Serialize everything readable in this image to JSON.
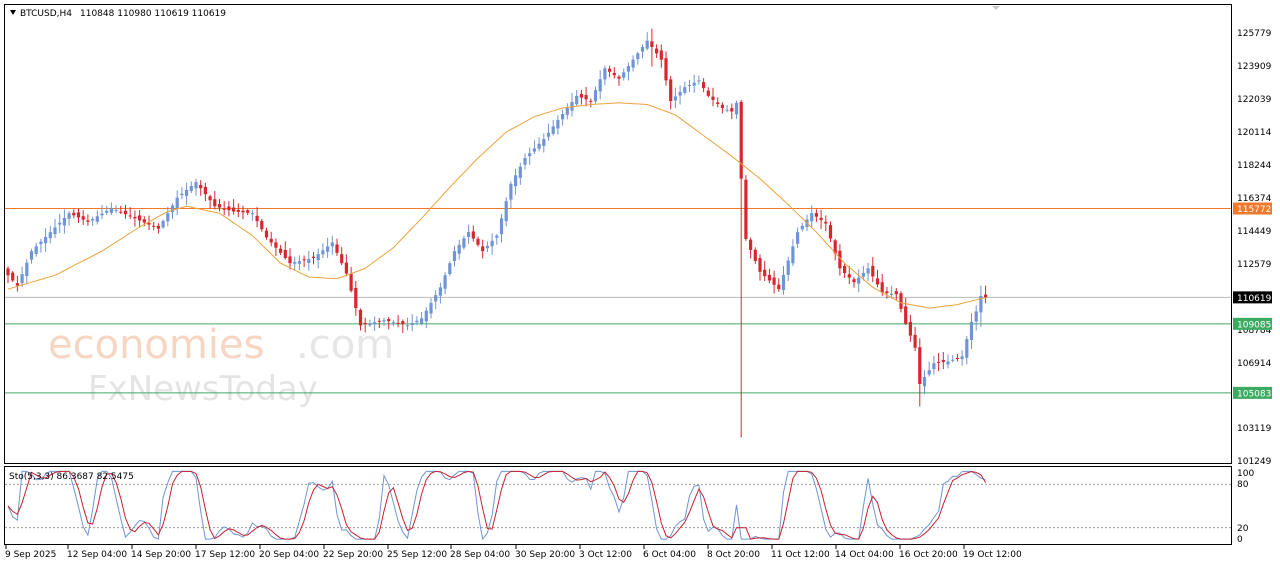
{
  "header": {
    "symbol": "BTCUSD,H4",
    "ohlc": "110848 110980 110619 110619"
  },
  "stoch_header": "Sto(5,3,3) 86.3687 82.5475",
  "watermark": {
    "line1_colored": "economies",
    "line1_suffix": ".com",
    "line2": "FxNewsToday"
  },
  "price_ticks": [
    "125779",
    "123909",
    "122039",
    "120114",
    "118244",
    "116374",
    "114449",
    "112579",
    "106914",
    "103119",
    "101249"
  ],
  "tick_under_label": "108784",
  "stoch_ticks": [
    "100",
    "80",
    "20",
    "0"
  ],
  "price_tags": [
    {
      "label": "115772",
      "value": 115772,
      "color": "#f0792b"
    },
    {
      "label": "110619",
      "value": 110619,
      "color": "#000000"
    },
    {
      "label": "109085",
      "value": 109085,
      "color": "#3daa62"
    },
    {
      "label": "105083",
      "value": 105083,
      "color": "#3daa62"
    }
  ],
  "time_ticks": [
    "9 Sep 2025",
    "12 Sep 04:00",
    "14 Sep 20:00",
    "17 Sep 12:00",
    "20 Sep 04:00",
    "22 Sep 20:00",
    "25 Sep 12:00",
    "28 Sep 04:00",
    "30 Sep 20:00",
    "3 Oct 12:00",
    "6 Oct 04:00",
    "8 Oct 20:00",
    "11 Oct 12:00",
    "14 Oct 04:00",
    "16 Oct 20:00",
    "19 Oct 12:00"
  ],
  "colors": {
    "bull": "#6f95d6",
    "bear": "#d8262e",
    "ma": "#e8a33d",
    "stoch_main": "#6f95d6",
    "stoch_signal": "#c62230",
    "grid_dots": "#9a9a9a"
  },
  "chart_data": {
    "type": "candlestick",
    "symbol": "BTCUSD",
    "timeframe": "H4",
    "ylim": [
      101249,
      126700
    ],
    "stoch_ylim": [
      0,
      100
    ],
    "stoch_levels": [
      80,
      20
    ],
    "x_categories": [
      "9 Sep 2025",
      "12 Sep 04:00",
      "14 Sep 20:00",
      "17 Sep 12:00",
      "20 Sep 04:00",
      "22 Sep 20:00",
      "25 Sep 12:00",
      "28 Sep 04:00",
      "30 Sep 20:00",
      "3 Oct 12:00",
      "6 Oct 04:00",
      "8 Oct 20:00",
      "11 Oct 12:00",
      "14 Oct 04:00",
      "16 Oct 20:00",
      "19 Oct 12:00"
    ],
    "price_anchors": [
      [
        0,
        111900
      ],
      [
        2,
        111300
      ],
      [
        5,
        113300
      ],
      [
        9,
        114400
      ],
      [
        13,
        115500
      ],
      [
        17,
        115000
      ],
      [
        22,
        115800
      ],
      [
        27,
        115200
      ],
      [
        32,
        114600
      ],
      [
        36,
        116400
      ],
      [
        40,
        117300
      ],
      [
        44,
        115900
      ],
      [
        48,
        115600
      ],
      [
        52,
        115500
      ],
      [
        55,
        114100
      ],
      [
        60,
        112600
      ],
      [
        65,
        112900
      ],
      [
        69,
        113800
      ],
      [
        72,
        112000
      ],
      [
        75,
        109000
      ],
      [
        80,
        109300
      ],
      [
        85,
        109000
      ],
      [
        88,
        109400
      ],
      [
        92,
        111200
      ],
      [
        95,
        113300
      ],
      [
        98,
        114400
      ],
      [
        101,
        113300
      ],
      [
        104,
        114200
      ],
      [
        107,
        117200
      ],
      [
        110,
        118700
      ],
      [
        114,
        119800
      ],
      [
        117,
        120900
      ],
      [
        121,
        122300
      ],
      [
        124,
        122000
      ],
      [
        127,
        123900
      ],
      [
        130,
        123300
      ],
      [
        133,
        124400
      ],
      [
        136,
        125500
      ],
      [
        139,
        124400
      ],
      [
        141,
        122000
      ],
      [
        144,
        122800
      ],
      [
        147,
        123200
      ],
      [
        149,
        122300
      ],
      [
        152,
        121600
      ],
      [
        154,
        121400
      ],
      [
        155,
        121900
      ],
      [
        156,
        117500
      ],
      [
        157,
        114000
      ],
      [
        160,
        112100
      ],
      [
        164,
        111100
      ],
      [
        168,
        114400
      ],
      [
        171,
        115500
      ],
      [
        174,
        114900
      ],
      [
        177,
        112300
      ],
      [
        180,
        111500
      ],
      [
        183,
        112300
      ],
      [
        186,
        110900
      ],
      [
        189,
        110800
      ],
      [
        191,
        109100
      ],
      [
        193,
        107700
      ],
      [
        194,
        105600
      ],
      [
        197,
        106800
      ],
      [
        200,
        106900
      ],
      [
        203,
        107200
      ],
      [
        205,
        109200
      ],
      [
        206,
        109800
      ],
      [
        207,
        110700
      ],
      [
        208,
        110619
      ]
    ],
    "spikes": [
      {
        "index": 156,
        "high": 121900,
        "low": 102500
      },
      {
        "index": 194,
        "high": 107800,
        "low": 104300
      },
      {
        "index": 207,
        "high": 111300,
        "low": 108900
      },
      {
        "index": 137,
        "high": 126200,
        "low": 124000
      }
    ],
    "moving_average": [
      [
        0,
        111100
      ],
      [
        10,
        111900
      ],
      [
        20,
        113300
      ],
      [
        28,
        114700
      ],
      [
        34,
        115600
      ],
      [
        38,
        115900
      ],
      [
        45,
        115500
      ],
      [
        52,
        114200
      ],
      [
        58,
        112600
      ],
      [
        64,
        111800
      ],
      [
        70,
        111700
      ],
      [
        76,
        112300
      ],
      [
        82,
        113500
      ],
      [
        88,
        115200
      ],
      [
        94,
        117000
      ],
      [
        100,
        118700
      ],
      [
        106,
        120200
      ],
      [
        112,
        121100
      ],
      [
        118,
        121600
      ],
      [
        124,
        121800
      ],
      [
        130,
        121900
      ],
      [
        136,
        121800
      ],
      [
        142,
        121200
      ],
      [
        148,
        120000
      ],
      [
        154,
        118800
      ],
      [
        160,
        117500
      ],
      [
        166,
        116000
      ],
      [
        172,
        114400
      ],
      [
        178,
        112600
      ],
      [
        184,
        111200
      ],
      [
        190,
        110300
      ],
      [
        196,
        110000
      ],
      [
        202,
        110200
      ],
      [
        208,
        110619
      ]
    ],
    "horizontal_levels": [
      115772,
      110619,
      109085,
      105083
    ],
    "stochastic": {
      "main_last": 86.3687,
      "signal_last": 82.5475
    }
  }
}
